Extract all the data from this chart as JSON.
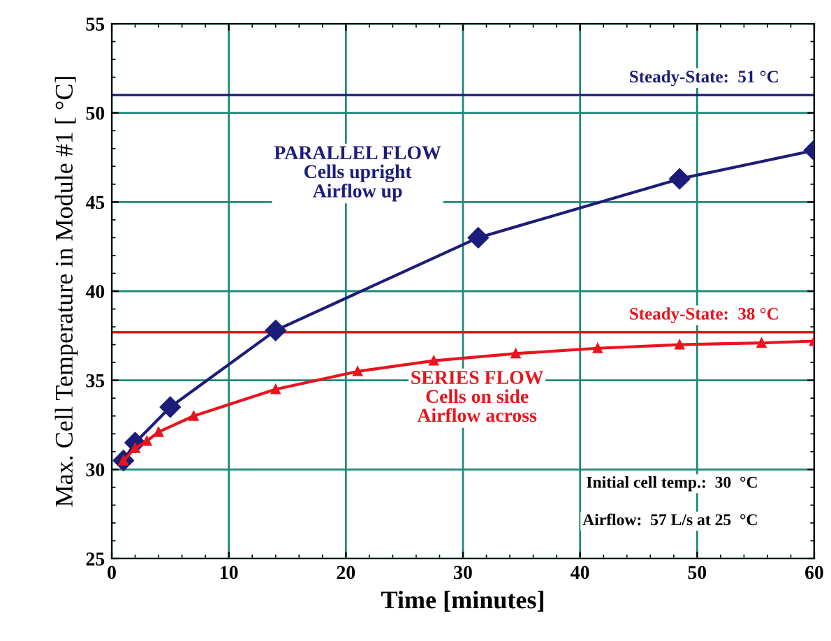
{
  "chart_data": {
    "type": "line",
    "xlabel": "Time [minutes]",
    "ylabel": "Max. Cell Temperature in Module #1 [ °C]",
    "xlim": [
      0,
      60
    ],
    "ylim": [
      25,
      55
    ],
    "xticks": [
      0,
      10,
      20,
      30,
      40,
      50,
      60
    ],
    "yticks": [
      25,
      30,
      35,
      40,
      45,
      50,
      55
    ],
    "grid": true,
    "marker": "triangle",
    "line_style": "solid",
    "series": [
      {
        "color": "#1c1c7a",
        "marker": "diamond",
        "x": [
          1,
          2,
          5,
          14,
          31.3,
          48.5,
          60
        ],
        "values": [
          30.5,
          31.5,
          33.5,
          37.8,
          43.0,
          46.3,
          47.9
        ]
      },
      {
        "color": "#e8141e",
        "x": [
          1,
          2,
          3,
          4,
          7,
          14,
          21,
          27.5,
          34.5,
          41.5,
          48.5,
          55.5,
          60
        ],
        "values": [
          30.5,
          31.2,
          31.6,
          32.1,
          33.0,
          34.5,
          35.5,
          36.1,
          36.5,
          36.8,
          37.0,
          37.1,
          37.2
        ]
      }
    ],
    "ref_lines": [
      {
        "axis": "y",
        "value": 51,
        "label": "Steady-State:  51 °C",
        "color": "#1c1c7a"
      },
      {
        "axis": "y",
        "value": 37.7,
        "label": "Steady-State:  38 °C",
        "color": "#e8141e"
      }
    ],
    "annotations": [
      "PARALLEL FLOW\nCells upright\nAirflow up",
      "SERIES FLOW\nCells on side\nAirflow across",
      "Initial cell temp.:  30  °C",
      "Airflow:  57 L/s at 25  °C"
    ]
  }
}
